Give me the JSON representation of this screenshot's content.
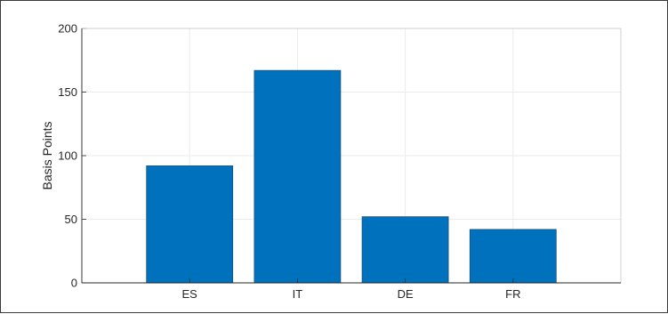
{
  "chart_data": {
    "type": "bar",
    "categories": [
      "ES",
      "IT",
      "DE",
      "FR"
    ],
    "values": [
      92,
      167,
      52,
      42
    ],
    "title": "",
    "xlabel": "",
    "ylabel": "Basis Points",
    "ylim": [
      0,
      200
    ],
    "yticks": [
      0,
      50,
      100,
      150,
      200
    ],
    "xlim": [
      0,
      5
    ],
    "grid": true,
    "bar_color": "#0072BD",
    "bar_edge_color": "#1a4f7a",
    "grid_color": "#ebebeb",
    "axis_color": "#262626"
  }
}
